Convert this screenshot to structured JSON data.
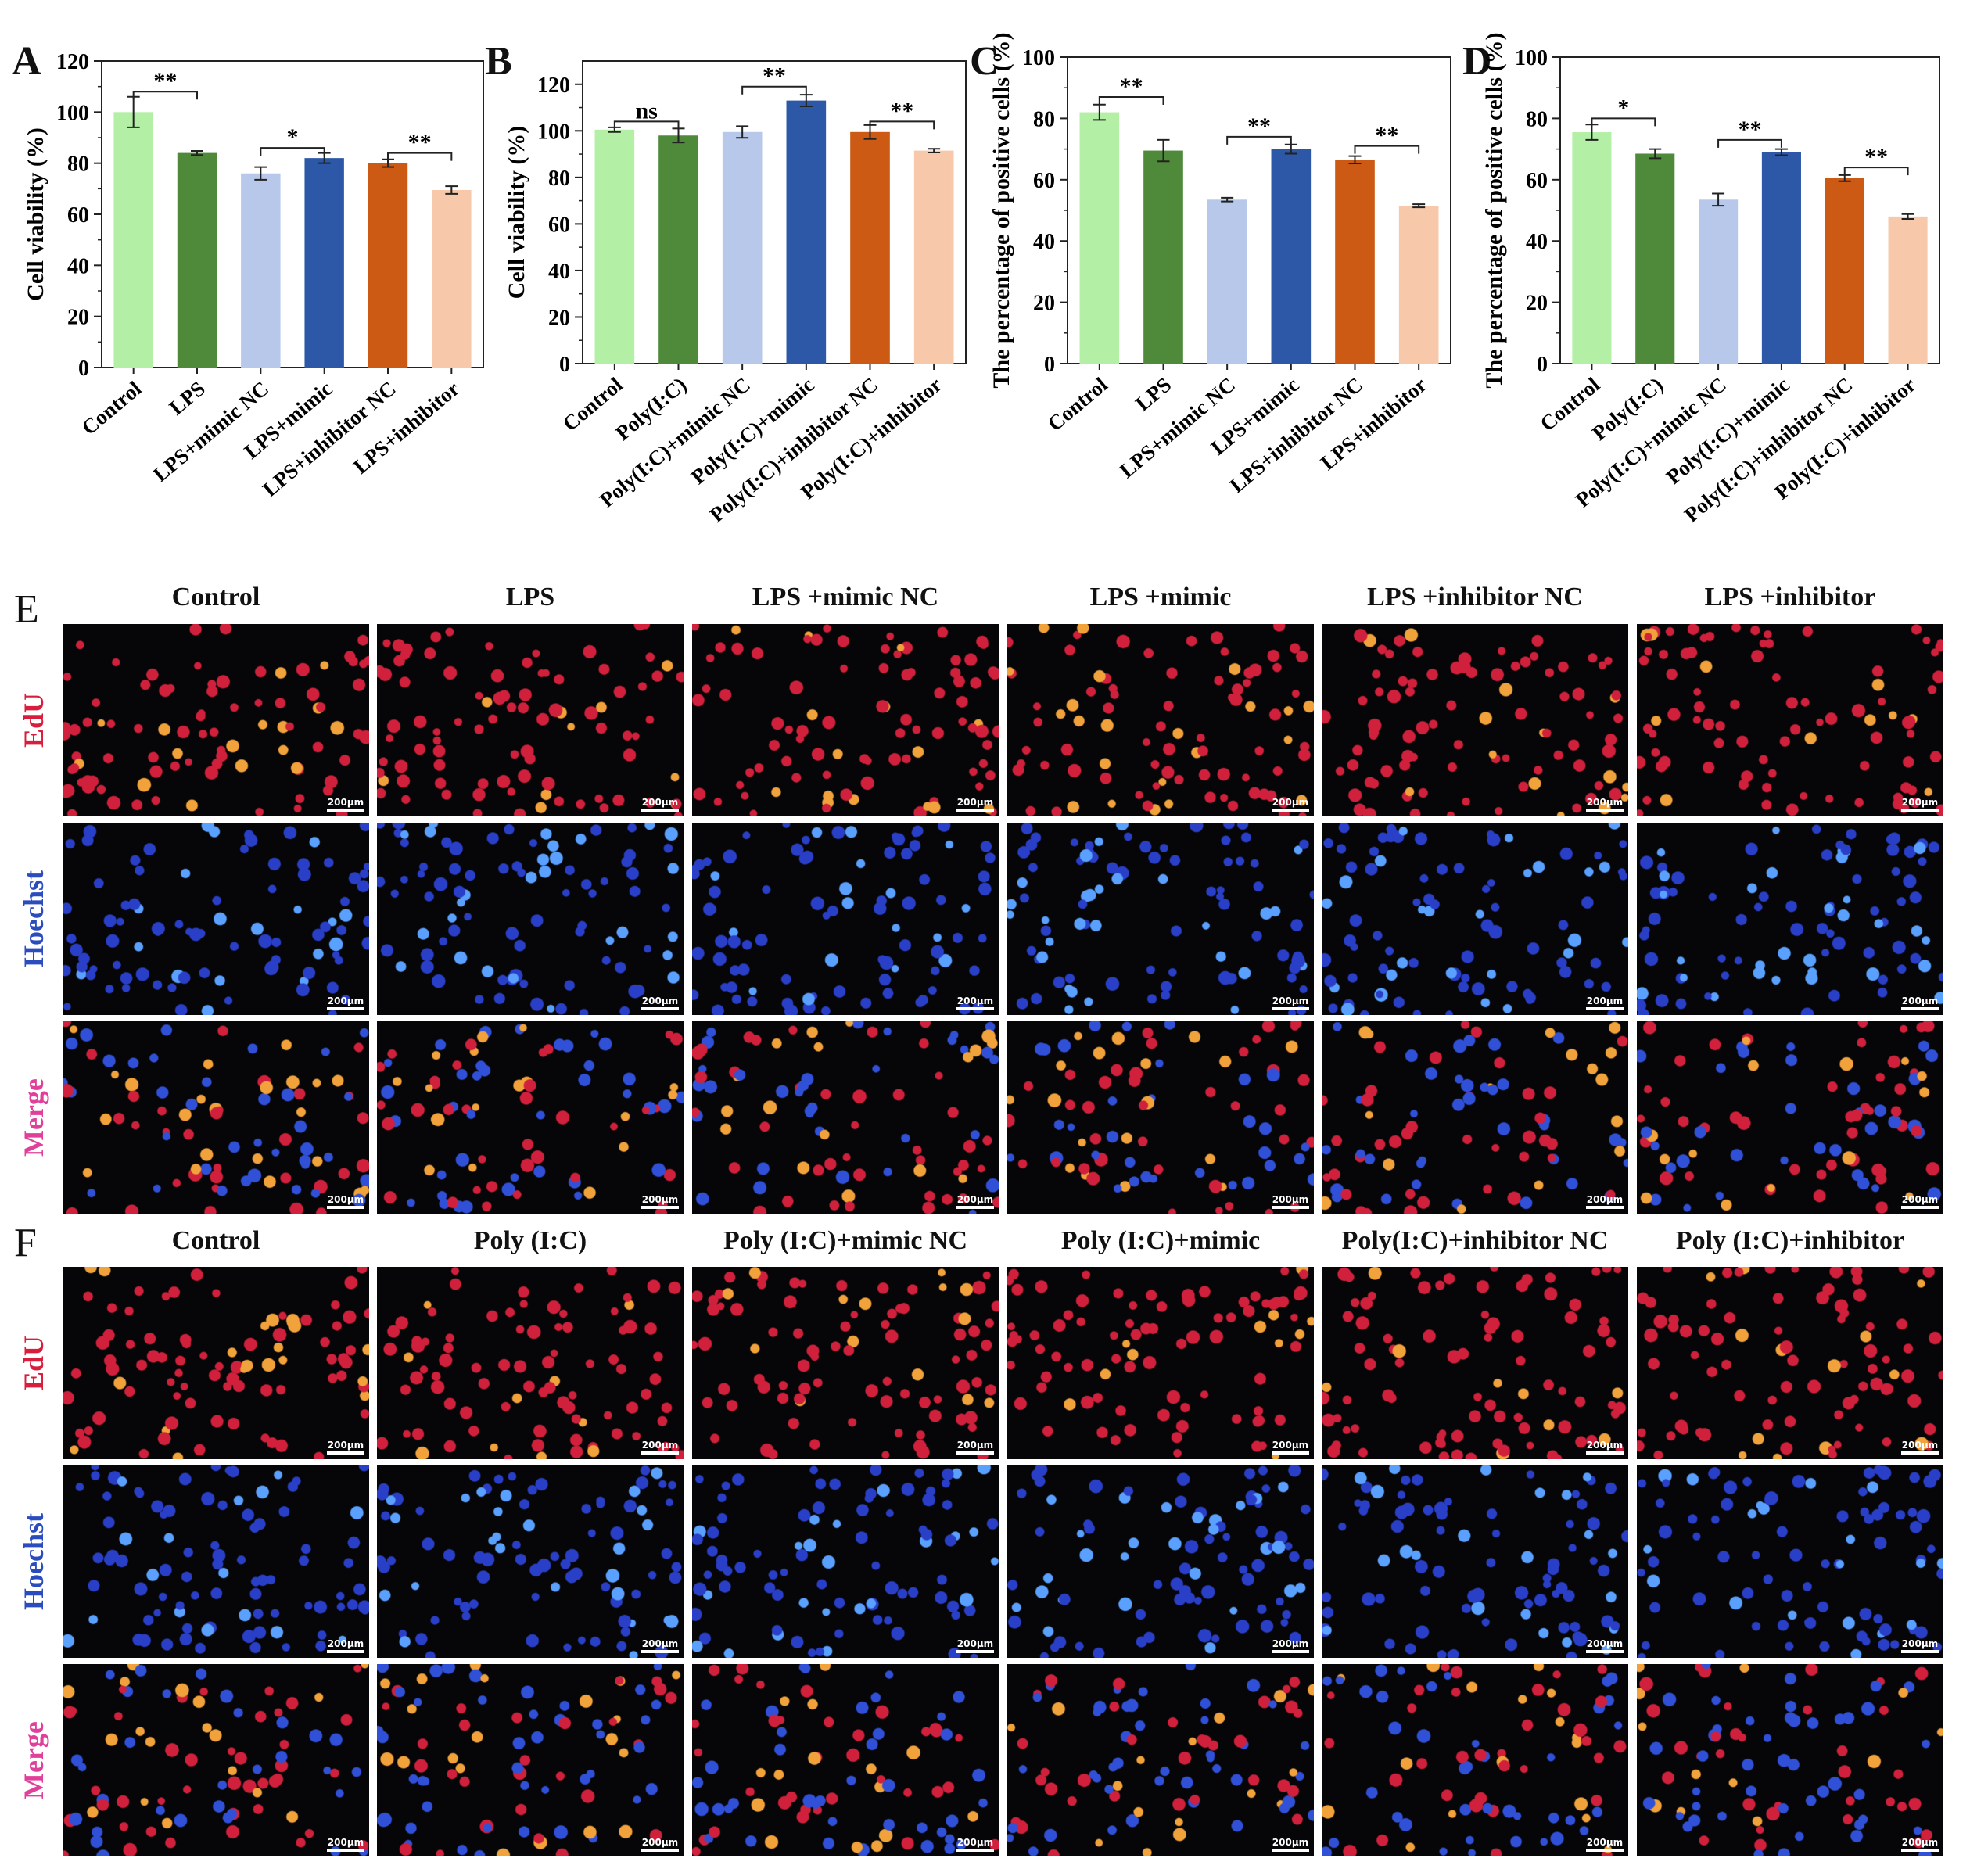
{
  "colors": {
    "c1": "#b3f0a6",
    "c2": "#4f8a3a",
    "c3": "#b7c8ea",
    "c4": "#2d58a8",
    "c5": "#cc5a15",
    "c6": "#f7c9aa",
    "edu": "#d81e3c",
    "hoechst": "#2b4cbf",
    "merge": "#e0409a"
  },
  "chart_data": [
    {
      "panel": "A",
      "type": "bar",
      "ylabel": "Cell viability (%)",
      "ylim": [
        0,
        120
      ],
      "yticks": [
        0,
        20,
        40,
        60,
        80,
        100,
        120
      ],
      "categories": [
        "Control",
        "LPS",
        "LPS+mimic NC",
        "LPS+mimic",
        "LPS+inhibitor NC",
        "LPS+inhibitor"
      ],
      "values": [
        100,
        84,
        76,
        82,
        80,
        69.5
      ],
      "errors": [
        6,
        0.8,
        2.5,
        2,
        1.5,
        1.5
      ],
      "sig": [
        {
          "from": 0,
          "to": 1,
          "label": "**",
          "y": 108
        },
        {
          "from": 2,
          "to": 3,
          "label": "*",
          "y": 86
        },
        {
          "from": 4,
          "to": 5,
          "label": "**",
          "y": 84
        }
      ]
    },
    {
      "panel": "B",
      "type": "bar",
      "ylabel": "Cell viability (%)",
      "ylim": [
        0,
        130
      ],
      "yticks": [
        0,
        20,
        40,
        60,
        80,
        100,
        120
      ],
      "categories": [
        "Control",
        "Poly(I:C)",
        "Poly(I:C)+mimic NC",
        "Poly(I:C)+mimic",
        "Poly(I:C)+inhibitor NC",
        "Poly(I:C)+inhibitor"
      ],
      "values": [
        100.5,
        98,
        99.5,
        113,
        99.5,
        91.5
      ],
      "errors": [
        1,
        3,
        2.5,
        2.5,
        3,
        0.8
      ],
      "sig": [
        {
          "from": 0,
          "to": 1,
          "label": "ns",
          "y": 104
        },
        {
          "from": 2,
          "to": 3,
          "label": "**",
          "y": 119
        },
        {
          "from": 4,
          "to": 5,
          "label": "**",
          "y": 104
        }
      ]
    },
    {
      "panel": "C",
      "type": "bar",
      "ylabel": "The percentage of positive cells (%)",
      "ylim": [
        0,
        100
      ],
      "yticks": [
        0,
        20,
        40,
        60,
        80,
        100
      ],
      "categories": [
        "Control",
        "LPS",
        "LPS+mimic NC",
        "LPS+mimic",
        "LPS+inhibitor NC",
        "LPS+inhibitor"
      ],
      "values": [
        82,
        69.5,
        53.5,
        70,
        66.5,
        51.5
      ],
      "errors": [
        2.5,
        3.5,
        0.6,
        1.5,
        1.2,
        0.5
      ],
      "sig": [
        {
          "from": 0,
          "to": 1,
          "label": "**",
          "y": 87
        },
        {
          "from": 2,
          "to": 3,
          "label": "**",
          "y": 74
        },
        {
          "from": 4,
          "to": 5,
          "label": "**",
          "y": 71
        }
      ]
    },
    {
      "panel": "D",
      "type": "bar",
      "ylabel": "The percentage of positive cells (%)",
      "ylim": [
        0,
        100
      ],
      "yticks": [
        0,
        20,
        40,
        60,
        80,
        100
      ],
      "categories": [
        "Control",
        "Poly(I:C)",
        "Poly(I:C)+mimic NC",
        "Poly(I:C)+mimic",
        "Poly(I:C)+inhibitor NC",
        "Poly(I:C)+inhibitor"
      ],
      "values": [
        75.5,
        68.5,
        53.5,
        69,
        60.5,
        48
      ],
      "errors": [
        2.5,
        1.5,
        2,
        1,
        1,
        0.8
      ],
      "sig": [
        {
          "from": 0,
          "to": 1,
          "label": "*",
          "y": 80
        },
        {
          "from": 2,
          "to": 3,
          "label": "**",
          "y": 73
        },
        {
          "from": 4,
          "to": 5,
          "label": "**",
          "y": 64
        }
      ]
    }
  ],
  "image_grids": [
    {
      "panel": "E",
      "titles": [
        "Control",
        "LPS",
        "LPS +mimic NC",
        "LPS +mimic",
        "LPS +inhibitor NC",
        "LPS +inhibitor"
      ],
      "rows": [
        "EdU",
        "Hoechst",
        "Merge"
      ],
      "scale": "200μm"
    },
    {
      "panel": "F",
      "titles": [
        "Control",
        "Poly (I:C)",
        "Poly (I:C)+mimic NC",
        "Poly (I:C)+mimic",
        "Poly(I:C)+inhibitor NC",
        "Poly (I:C)+inhibitor"
      ],
      "rows": [
        "EdU",
        "Hoechst",
        "Merge"
      ],
      "scale": "200μm"
    }
  ]
}
